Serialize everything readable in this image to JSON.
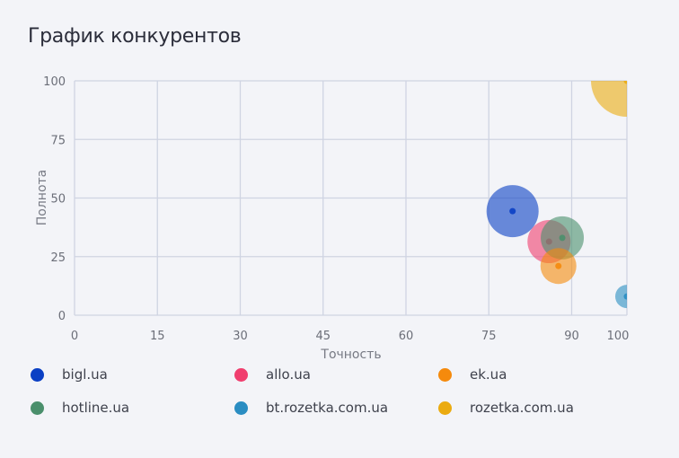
{
  "title": "График конкурентов",
  "chart_data": {
    "type": "scatter",
    "subtype": "bubble",
    "title": "График конкурентов",
    "xlabel": "Точность",
    "ylabel": "Полнота",
    "xlim": [
      0,
      100
    ],
    "ylim": [
      0,
      100
    ],
    "x_ticks": [
      0,
      15,
      30,
      45,
      60,
      75,
      90,
      100
    ],
    "y_ticks": [
      0,
      25,
      50,
      75,
      100
    ],
    "grid": true,
    "legend_position": "bottom",
    "series": [
      {
        "name": "bigl.ua",
        "color": "#0a3fc4",
        "x": 79.3,
        "y": 44.4,
        "size": 29
      },
      {
        "name": "allo.ua",
        "color": "#f03e6e",
        "x": 85.9,
        "y": 31.4,
        "size": 24
      },
      {
        "name": "ek.ua",
        "color": "#f58a0c",
        "x": 87.6,
        "y": 21.0,
        "size": 20
      },
      {
        "name": "hotline.ua",
        "color": "#4a8f6c",
        "x": 88.3,
        "y": 33.0,
        "size": 24
      },
      {
        "name": "bt.rozetka.com.ua",
        "color": "#2a8dc2",
        "x": 100,
        "y": 8.0,
        "size": 13
      },
      {
        "name": "rozetka.com.ua",
        "color": "#ebab10",
        "x": 100,
        "y": 100,
        "size": 40
      }
    ]
  },
  "legend": [
    {
      "label": "bigl.ua",
      "color": "#0a3fc4"
    },
    {
      "label": "allo.ua",
      "color": "#f03e6e"
    },
    {
      "label": "ek.ua",
      "color": "#f58a0c"
    },
    {
      "label": "hotline.ua",
      "color": "#4a8f6c"
    },
    {
      "label": "bt.rozetka.com.ua",
      "color": "#2a8dc2"
    },
    {
      "label": "rozetka.com.ua",
      "color": "#ebab10"
    }
  ]
}
